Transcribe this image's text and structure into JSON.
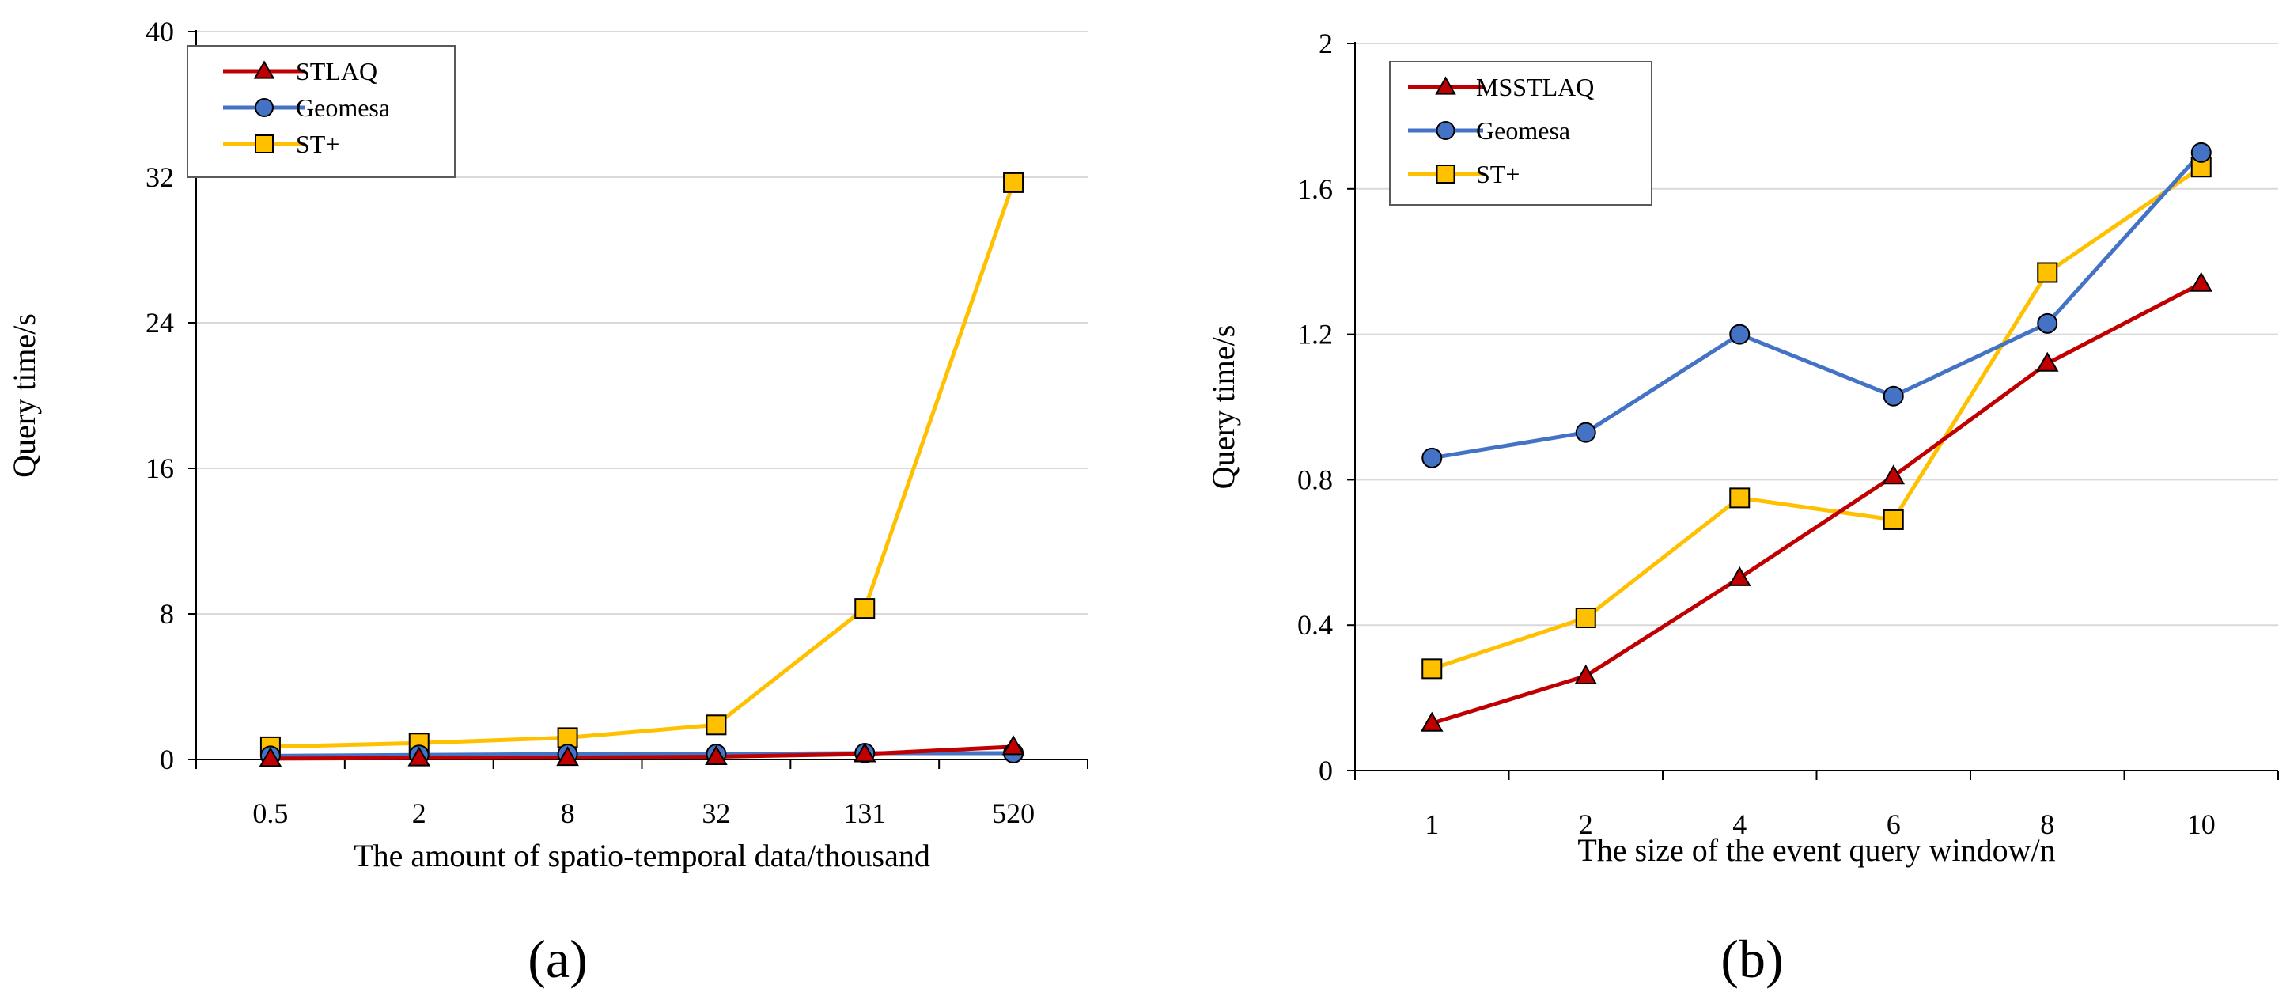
{
  "chart_data": [
    {
      "type": "line",
      "panel_label": "(a)",
      "categories": [
        "0.5",
        "2",
        "8",
        "32",
        "131",
        "520"
      ],
      "xlabel": "The amount of spatio-temporal data/thousand",
      "ylabel": "Query time/s",
      "ylim": [
        0,
        40
      ],
      "yticks": [
        0,
        8,
        16,
        24,
        32,
        40
      ],
      "grid": true,
      "legend_position": "top-left",
      "series": [
        {
          "name": "STLAQ",
          "marker": "triangle",
          "color": "#c00000",
          "values": [
            0.05,
            0.08,
            0.1,
            0.15,
            0.3,
            0.7
          ]
        },
        {
          "name": "Geomesa",
          "marker": "circle",
          "color": "#4472c4",
          "values": [
            0.2,
            0.25,
            0.3,
            0.3,
            0.35,
            0.35
          ]
        },
        {
          "name": "ST+",
          "marker": "square",
          "color": "#ffc000",
          "values": [
            0.7,
            0.9,
            1.2,
            1.9,
            8.3,
            31.7
          ]
        }
      ]
    },
    {
      "type": "line",
      "panel_label": "(b)",
      "categories": [
        "1",
        "2",
        "4",
        "6",
        "8",
        "10"
      ],
      "xlabel": "The size of the event query window/n",
      "ylabel": "Query time/s",
      "ylim": [
        0,
        2
      ],
      "yticks": [
        "0",
        "0.4",
        "0.8",
        "1.2",
        "1.6",
        "2"
      ],
      "grid": true,
      "legend_position": "top-left",
      "series": [
        {
          "name": "MSSTLAQ",
          "marker": "triangle",
          "color": "#c00000",
          "values": [
            0.13,
            0.26,
            0.53,
            0.81,
            1.12,
            1.34
          ]
        },
        {
          "name": "Geomesa",
          "marker": "circle",
          "color": "#4472c4",
          "values": [
            0.86,
            0.93,
            1.2,
            1.03,
            1.23,
            1.7
          ]
        },
        {
          "name": "ST+",
          "marker": "square",
          "color": "#ffc000",
          "values": [
            0.28,
            0.42,
            0.75,
            0.69,
            1.37,
            1.66
          ]
        }
      ]
    }
  ]
}
